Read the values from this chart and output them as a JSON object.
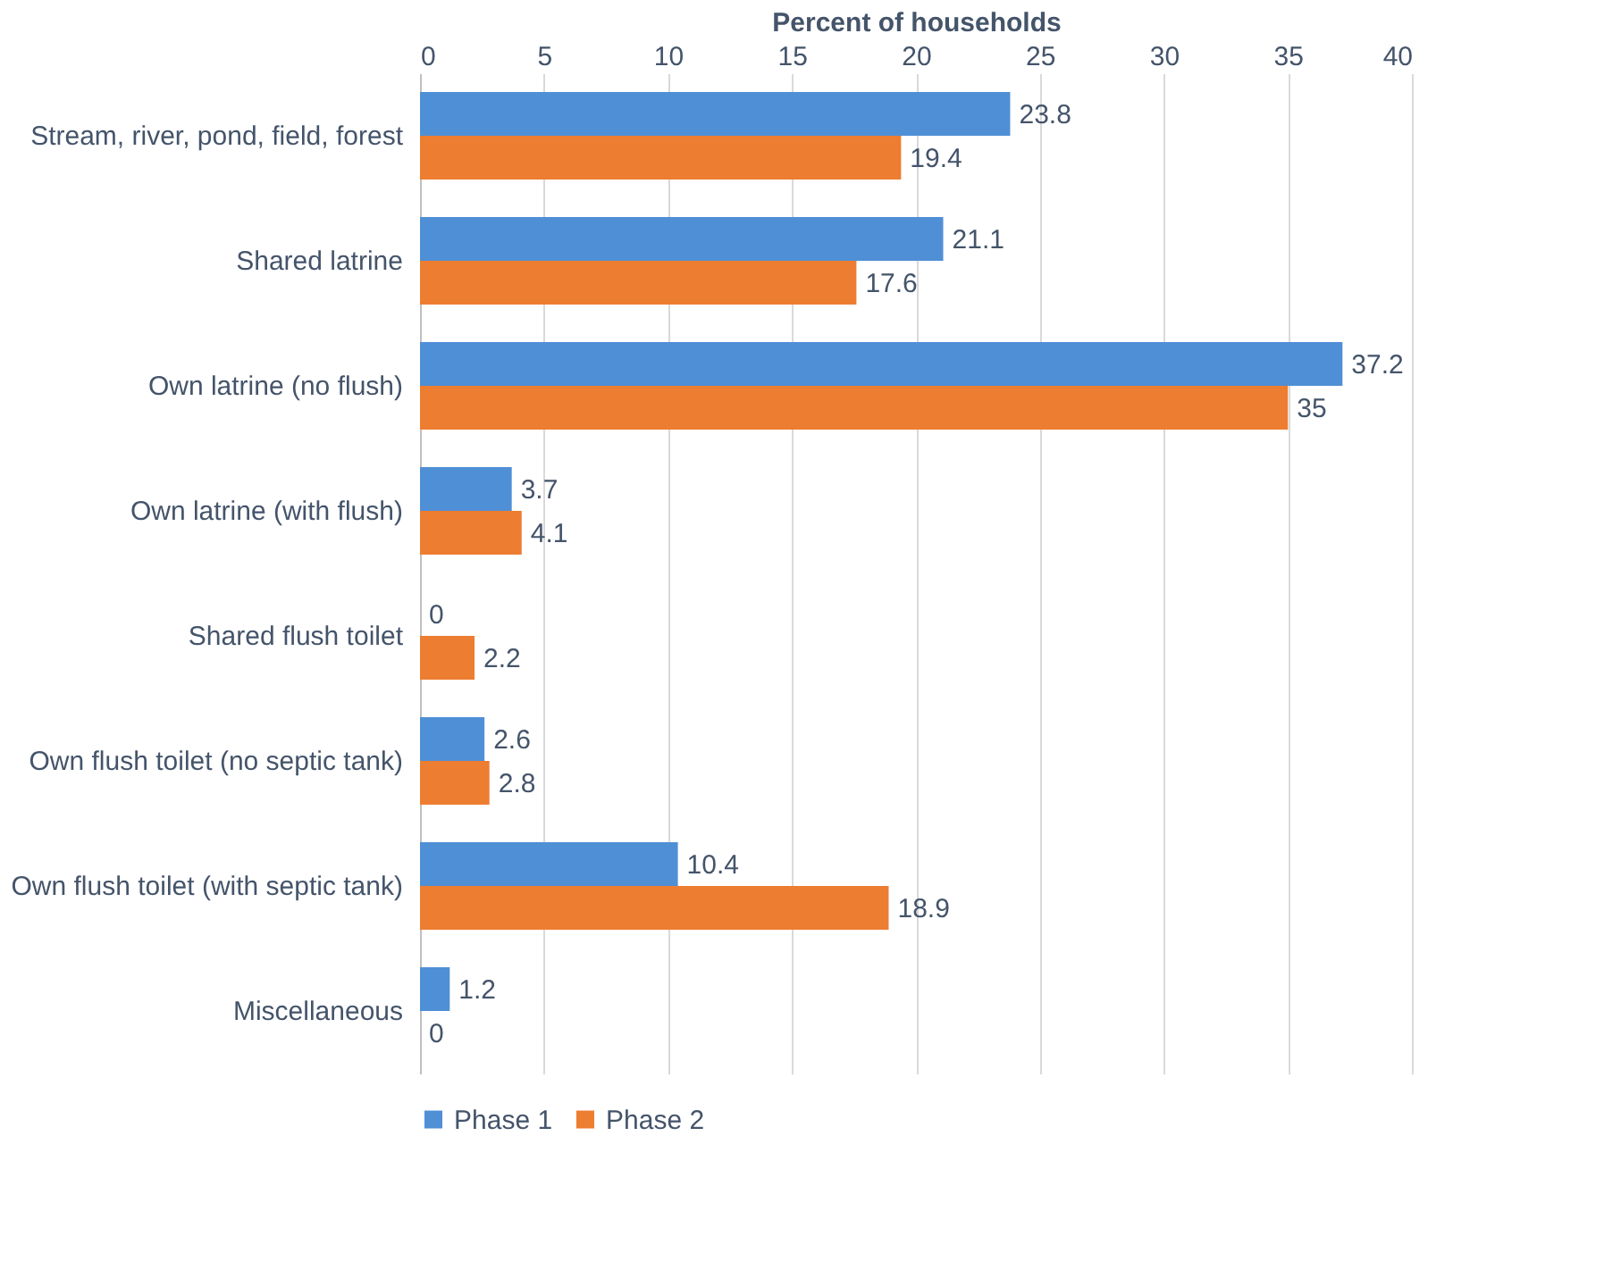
{
  "chart_data": {
    "type": "bar",
    "orientation": "horizontal",
    "xlabel": "Percent of households",
    "categories": [
      "Stream, river, pond, field, forest",
      "Shared latrine",
      "Own latrine (no flush)",
      "Own latrine (with flush)",
      "Shared flush toilet",
      "Own flush toilet (no septic tank)",
      "Own flush toilet (with septic tank)",
      "Miscellaneous"
    ],
    "series": [
      {
        "name": "Phase 1",
        "color": "#4f8fd6",
        "values": [
          23.8,
          21.1,
          37.2,
          3.7,
          0,
          2.6,
          10.4,
          1.2
        ]
      },
      {
        "name": "Phase 2",
        "color": "#ed7d31",
        "values": [
          19.4,
          17.6,
          35,
          4.1,
          2.2,
          2.8,
          18.9,
          0
        ]
      }
    ],
    "xlim": [
      0,
      40
    ],
    "xticks": [
      0,
      5,
      10,
      15,
      20,
      25,
      30,
      35,
      40
    ],
    "grid": "x",
    "legend": "bottom",
    "data_labels": true
  }
}
